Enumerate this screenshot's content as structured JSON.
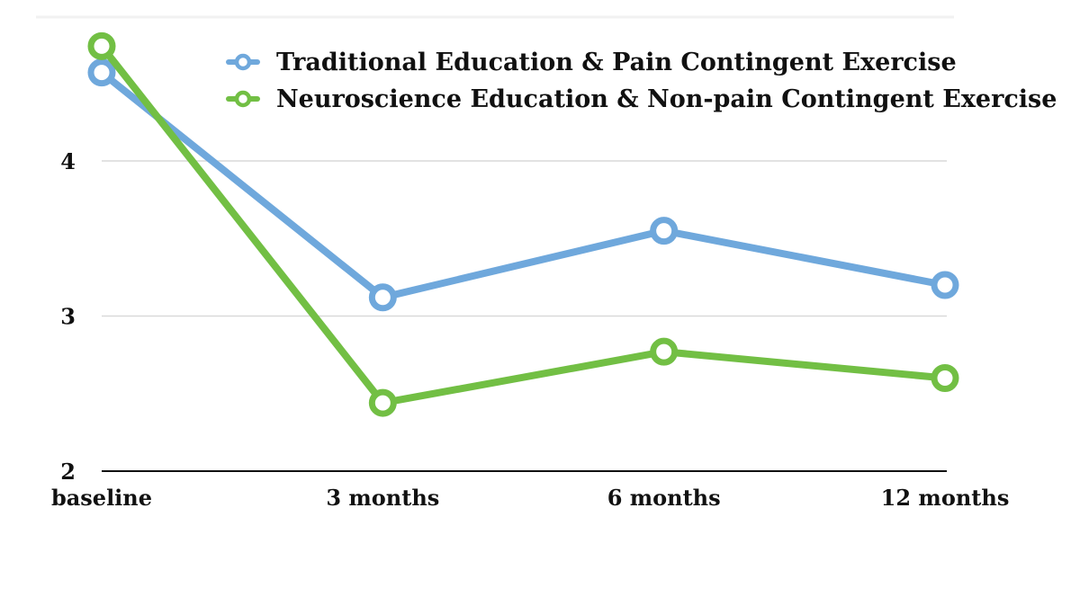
{
  "chart_data": {
    "type": "line",
    "title": "",
    "xlabel": "",
    "ylabel": "",
    "categories": [
      "baseline",
      "3 months",
      "6 months",
      "12 months"
    ],
    "ylim": [
      2,
      4.75
    ],
    "yticks": [
      2,
      3,
      4
    ],
    "grid": true,
    "legend_position": "top-right",
    "series": [
      {
        "name": "Traditional Education & Pain Contingent Exercise",
        "color": "#6fa8dc",
        "values": [
          4.57,
          3.12,
          3.55,
          3.2
        ]
      },
      {
        "name": "Neuroscience Education & Non-pain Contingent Exercise",
        "color": "#72bf44",
        "values": [
          4.74,
          2.44,
          2.77,
          2.6
        ]
      }
    ]
  }
}
